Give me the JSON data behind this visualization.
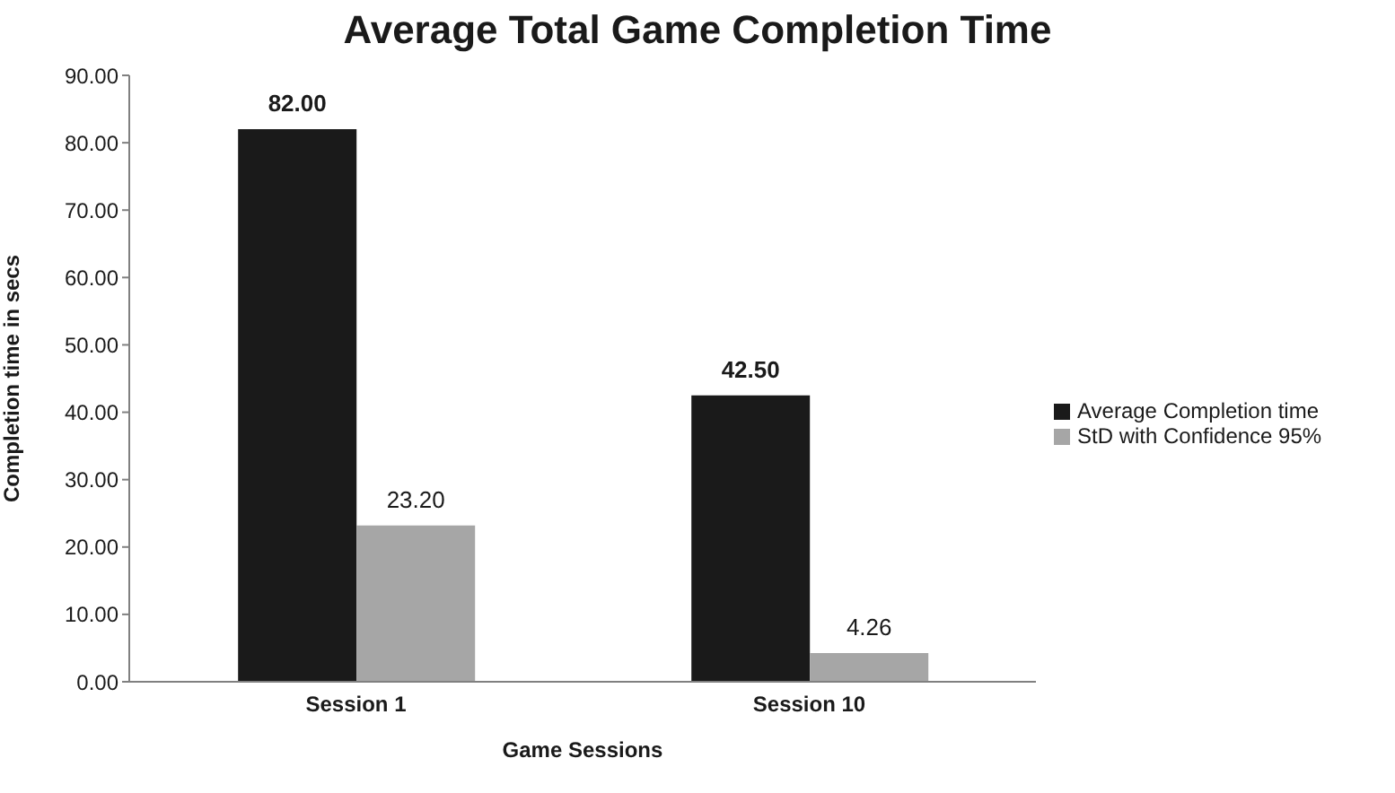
{
  "chart_data": {
    "type": "bar",
    "title": "Average Total Game Completion Time",
    "xlabel": "Game Sessions",
    "ylabel": "Completion time in secs",
    "categories": [
      "Session 1",
      "Session 10"
    ],
    "series": [
      {
        "name": "Average Completion time",
        "color": "#1a1a1a",
        "values": [
          82.0,
          42.5
        ],
        "value_labels": [
          "82.00",
          "42.50"
        ]
      },
      {
        "name": "StD with Confidence 95%",
        "color": "#a6a6a6",
        "values": [
          23.2,
          4.26
        ],
        "value_labels": [
          "23.20",
          "4.26"
        ]
      }
    ],
    "ylim": [
      0,
      90
    ],
    "yticks": [
      {
        "value": 0,
        "label": "0.00"
      },
      {
        "value": 10,
        "label": "10.00"
      },
      {
        "value": 20,
        "label": "20.00"
      },
      {
        "value": 30,
        "label": "30.00"
      },
      {
        "value": 40,
        "label": "40.00"
      },
      {
        "value": 50,
        "label": "50.00"
      },
      {
        "value": 60,
        "label": "60.00"
      },
      {
        "value": 70,
        "label": "70.00"
      },
      {
        "value": 80,
        "label": "80.00"
      },
      {
        "value": 90,
        "label": "90.00"
      }
    ],
    "grid": false,
    "legend": "right"
  }
}
